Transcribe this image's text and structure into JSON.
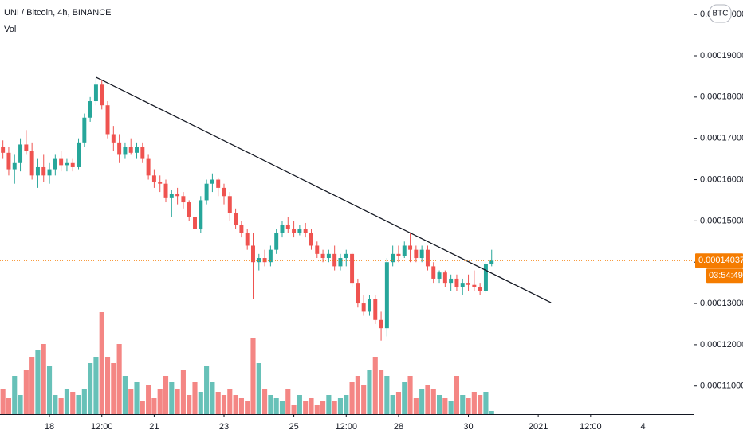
{
  "chart_data": {
    "type": "candlestick",
    "title": "UNI / Bitcoin, 4h, BINANCE",
    "volume_label": "Vol",
    "currency_button": "BTC",
    "up_color": "#26a69a",
    "down_color": "#ef5350",
    "xlim": [
      -0.5,
      118.7
    ],
    "xticks": [
      {
        "value": 8,
        "label": "18"
      },
      {
        "value": 17,
        "label": "12:00"
      },
      {
        "value": 26,
        "label": "21"
      },
      {
        "value": 38,
        "label": "23"
      },
      {
        "value": 50,
        "label": "25"
      },
      {
        "value": 59,
        "label": "12:00"
      },
      {
        "value": 68,
        "label": "28"
      },
      {
        "value": 80,
        "label": "30"
      },
      {
        "value": 92,
        "label": "2021"
      },
      {
        "value": 101,
        "label": "12:00"
      },
      {
        "value": 110,
        "label": "4"
      }
    ],
    "ylim": [
      0.0001032,
      0.0002035
    ],
    "yticks": [
      {
        "value": 0.0002,
        "label": "0.00020000"
      },
      {
        "value": 0.00019,
        "label": "0.00019000"
      },
      {
        "value": 0.00018,
        "label": "0.00018000"
      },
      {
        "value": 0.00017,
        "label": "0.00017000"
      },
      {
        "value": 0.00016,
        "label": "0.00016000"
      },
      {
        "value": 0.00015,
        "label": "0.00015000"
      },
      {
        "value": 0.00014,
        "label": "0.00014000"
      },
      {
        "value": 0.00013,
        "label": "0.00013000"
      },
      {
        "value": 0.00012,
        "label": "0.00012000"
      },
      {
        "value": 0.00011,
        "label": "0.00011000"
      }
    ],
    "open": [
      0.000168,
      0.0001665,
      0.0001625,
      0.000164,
      0.0001685,
      0.000167,
      0.000161,
      0.000163,
      0.000161,
      0.0001625,
      0.000165,
      0.0001635,
      0.000164,
      0.000163,
      0.000169,
      0.000175,
      0.000179,
      0.000183,
      0.000178,
      0.000171,
      0.000169,
      0.000166,
      0.000168,
      0.0001665,
      0.000168,
      0.000165,
      0.000161,
      0.0001595,
      0.000159,
      0.0001555,
      0.0001565,
      0.000156,
      0.0001545,
      0.000151,
      0.000148,
      0.000155,
      0.000159,
      0.00016,
      0.000158,
      0.000156,
      0.000152,
      0.000149,
      0.000147,
      0.000144,
      0.00014,
      0.000141,
      0.00014,
      0.000143,
      0.000147,
      0.000149,
      0.000148,
      0.000147,
      0.000148,
      0.000147,
      0.000144,
      0.000142,
      0.000141,
      0.000142,
      0.000139,
      0.000141,
      0.000142,
      0.000135,
      0.00013,
      0.000128,
      0.000131,
      0.000126,
      0.000124,
      0.00014,
      0.000142,
      0.0001415,
      0.000144,
      0.000143,
      0.000141,
      0.000143,
      0.000139,
      0.000136,
      0.0001375,
      0.000135,
      0.000136,
      0.000134,
      0.000135,
      0.0001345,
      0.000134,
      0.000133,
      0.0001395
    ],
    "high": [
      0.0001695,
      0.000168,
      0.000166,
      0.00017,
      0.000172,
      0.000169,
      0.000165,
      0.000166,
      0.000164,
      0.000166,
      0.000167,
      0.000165,
      0.000165,
      0.00017,
      0.000176,
      0.00018,
      0.0001845,
      0.000184,
      0.000179,
      0.000173,
      0.000171,
      0.000169,
      0.00017,
      0.000169,
      0.000169,
      0.000166,
      0.0001625,
      0.000161,
      0.00016,
      0.0001575,
      0.000158,
      0.000157,
      0.000155,
      0.000152,
      0.000156,
      0.00016,
      0.0001615,
      0.0001605,
      0.000159,
      0.000157,
      0.000153,
      0.00015,
      0.000148,
      0.000147,
      0.000142,
      0.000143,
      0.000144,
      0.000148,
      0.00015,
      0.000151,
      0.00015,
      0.000149,
      0.0001495,
      0.000148,
      0.000145,
      0.000143,
      0.000143,
      0.000144,
      0.000142,
      0.000143,
      0.0001425,
      0.000136,
      0.000132,
      0.000132,
      0.000132,
      0.000128,
      0.000141,
      0.000144,
      0.000144,
      0.000145,
      0.000147,
      0.000144,
      0.000144,
      0.000144,
      0.00014,
      0.000138,
      0.000138,
      0.000137,
      0.000137,
      0.000136,
      0.000137,
      0.000138,
      0.000135,
      0.00014,
      0.000143
    ],
    "low": [
      0.000165,
      0.000161,
      0.000159,
      0.000162,
      0.000166,
      0.00016,
      0.000158,
      0.0001595,
      0.000159,
      0.000161,
      0.000162,
      0.000162,
      0.000162,
      0.0001625,
      0.000168,
      0.000174,
      0.000178,
      0.000177,
      0.00017,
      0.000167,
      0.000164,
      0.000165,
      0.000166,
      0.000165,
      0.000164,
      0.00016,
      0.000158,
      0.000157,
      0.0001545,
      0.000151,
      0.000154,
      0.000153,
      0.00015,
      0.000146,
      0.000147,
      0.000154,
      0.000157,
      0.000156,
      0.000154,
      0.00015,
      0.000148,
      0.000146,
      0.000143,
      0.000131,
      0.000138,
      0.000139,
      0.000139,
      0.000142,
      0.000146,
      0.000147,
      0.000146,
      0.0001465,
      0.000146,
      0.000143,
      0.000141,
      0.00014,
      0.00014,
      0.000138,
      0.000138,
      0.000139,
      0.000134,
      0.000129,
      0.000127,
      0.000127,
      0.000125,
      0.000121,
      0.000122,
      0.000139,
      0.00014,
      0.000141,
      0.00014,
      0.00014,
      0.00014,
      0.000138,
      0.000135,
      0.000135,
      0.000134,
      0.000133,
      0.000133,
      0.000132,
      0.000133,
      0.000133,
      0.000132,
      0.0001325,
      0.000139
    ],
    "close": [
      0.0001665,
      0.0001625,
      0.000164,
      0.0001685,
      0.000167,
      0.000161,
      0.000163,
      0.000161,
      0.0001625,
      0.000165,
      0.0001635,
      0.000164,
      0.000163,
      0.000169,
      0.000175,
      0.000179,
      0.000183,
      0.000178,
      0.000171,
      0.000169,
      0.000166,
      0.000168,
      0.0001665,
      0.000168,
      0.000165,
      0.000161,
      0.0001595,
      0.000159,
      0.0001555,
      0.0001565,
      0.000156,
      0.0001545,
      0.000151,
      0.000148,
      0.000155,
      0.000159,
      0.00016,
      0.000158,
      0.000156,
      0.000152,
      0.000149,
      0.000147,
      0.000144,
      0.00014,
      0.000141,
      0.00014,
      0.000143,
      0.000147,
      0.000149,
      0.000148,
      0.000147,
      0.000148,
      0.000147,
      0.000144,
      0.000142,
      0.000141,
      0.000142,
      0.000139,
      0.000141,
      0.000142,
      0.000135,
      0.00013,
      0.000128,
      0.000131,
      0.000126,
      0.000124,
      0.00014,
      0.000142,
      0.0001415,
      0.000144,
      0.000143,
      0.000141,
      0.000143,
      0.000139,
      0.000136,
      0.0001375,
      0.000135,
      0.000136,
      0.000134,
      0.000135,
      0.0001345,
      0.000134,
      0.000133,
      0.0001395,
      0.00014037
    ],
    "volume": [
      8,
      5,
      12,
      6,
      14,
      18,
      20,
      22,
      15,
      6,
      5,
      8,
      7,
      6,
      8,
      16,
      18,
      32,
      18,
      16,
      22,
      12,
      8,
      10,
      4,
      9,
      5,
      8,
      12,
      10,
      8,
      14,
      6,
      10,
      7,
      15,
      10,
      7,
      6,
      8,
      6,
      5,
      4,
      24,
      16,
      8,
      6,
      5,
      4,
      8,
      3,
      6,
      4,
      5,
      3,
      4,
      6,
      4,
      5,
      6,
      10,
      12,
      9,
      14,
      18,
      14,
      12,
      6,
      7,
      10,
      12,
      5,
      8,
      9,
      8,
      6,
      5,
      4,
      12,
      6,
      5,
      7,
      6,
      7,
      1
    ],
    "volume_ylim": [
      0,
      100
    ],
    "trendline": {
      "x": [
        16,
        94.2
      ],
      "y": [
        0.0001848,
        0.0001302
      ],
      "color": "#131722"
    },
    "last_price": 0.00014037,
    "last_price_color": "#f57c00",
    "countdown": "03:54:49"
  }
}
